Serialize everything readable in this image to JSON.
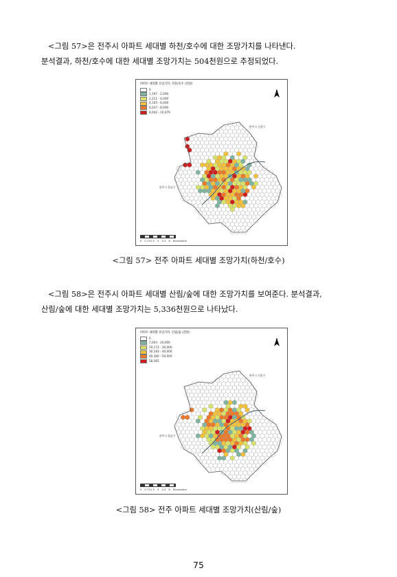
{
  "section1": {
    "line1": "<그림 57>은 전주시 아파트 세대별 하천/호수에 대한 조망가치를 나타낸다.",
    "line2": "분석결과, 하천/호수에 대한 세대별 조망가치는 504천원으로 추정되었다."
  },
  "figure57": {
    "legend_title": "아파트 세대별 조망가치: 하천/호수 (천원)",
    "legend": [
      {
        "label": "0",
        "color": "#ffffff"
      },
      {
        "label": "1,197 - 2,000",
        "color": "#7fb5a0"
      },
      {
        "label": "2,211 - 4,000",
        "color": "#d7e36a"
      },
      {
        "label": "4,105 - 6,000",
        "color": "#f2c23c"
      },
      {
        "label": "6,037 - 8,000",
        "color": "#ec7a2a"
      },
      {
        "label": "8,042 - 10,079",
        "color": "#cf1d1d"
      }
    ],
    "label_wanju_north": "완주시 신갈구",
    "label_wanju_south": "완주시 동남구",
    "north": "N",
    "scale_unit": "Kilometers",
    "scale_ticks": [
      "0",
      "0.751.5",
      "3",
      "4.5",
      "6"
    ],
    "caption": "<그림 57> 전주 아파트 세대별 조망가치(하천/호수)"
  },
  "section2": {
    "line1": "<그림 58>은 전주시 아파트 세대별 산림/숲에 대한 조망가치를 보여준다. 분석결과,",
    "line2": "산림/숲에 대한 세대별 조망가치는 5,336천원으로 나타났다."
  },
  "figure58": {
    "legend_title": "아파트 세대별 조망가치: 산림/숲 (천원)",
    "legend": [
      {
        "label": "0",
        "color": "#ffffff"
      },
      {
        "label": "7,003 - 20,000",
        "color": "#7fb5a0"
      },
      {
        "label": "20,173 - 30,000",
        "color": "#d7e36a"
      },
      {
        "label": "30,183 - 40,000",
        "color": "#f2c23c"
      },
      {
        "label": "40,360 - 50,000",
        "color": "#ec7a2a"
      },
      {
        "label": "58,365",
        "color": "#cf1d1d"
      }
    ],
    "label_wanju_north": "완주시 신갈구",
    "label_wanju_south": "완주시 동남구",
    "north": "N",
    "scale_unit": "Kilometers",
    "scale_ticks": [
      "0",
      "0.751.5",
      "3",
      "4.5",
      "6"
    ],
    "caption": "<그림 58> 전주 아파트 세대별 조망가치(산림/숲)"
  },
  "page_number": "75"
}
